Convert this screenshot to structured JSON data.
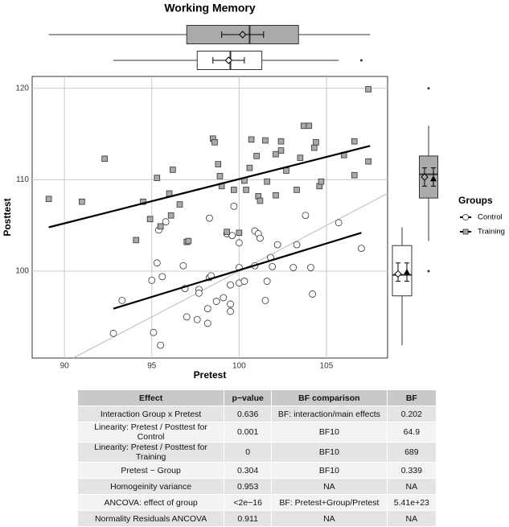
{
  "chart_data": {
    "type": "scatter",
    "title": "Working Memory",
    "xlabel": "Pretest",
    "ylabel": "Posttest",
    "xlim": [
      88.15,
      108.5
    ],
    "ylim": [
      90.5,
      121.3
    ],
    "xticks": [
      90,
      95,
      100,
      105
    ],
    "yticks": [
      100,
      110,
      120
    ],
    "grid": true,
    "legend_title": "Groups",
    "series": [
      {
        "name": "Control",
        "marker": "circle",
        "color": "#ffffff",
        "x": [
          92.8,
          93.3,
          95.1,
          95.5,
          95.3,
          95.0,
          95.6,
          95.4,
          95.8,
          96.9,
          96.8,
          97.0,
          97.6,
          97.7,
          97.7,
          98.2,
          98.2,
          98.3,
          98.3,
          98.4,
          98.7,
          99.1,
          99.5,
          99.5,
          99.3,
          99.5,
          99.6,
          100.0,
          100.0,
          99.7,
          100.3,
          100.0,
          100.9,
          100.9,
          101.1,
          101.2,
          101.5,
          101.6,
          101.8,
          101.9,
          102.2,
          103.1,
          103.3,
          103.8,
          104.1,
          104.2,
          105.7,
          107.0
        ],
        "values": [
          93.2,
          96.8,
          93.3,
          91.9,
          100.9,
          99.0,
          99.4,
          104.5,
          105.4,
          98.1,
          100.6,
          95.0,
          94.7,
          98.0,
          97.6,
          94.3,
          95.9,
          105.8,
          99.3,
          99.5,
          96.7,
          97.1,
          96.4,
          95.6,
          104.1,
          98.5,
          103.9,
          98.7,
          103.1,
          107.1,
          98.9,
          100.4,
          104.4,
          100.6,
          104.1,
          103.6,
          96.8,
          98.9,
          101.5,
          100.5,
          102.9,
          100.4,
          102.9,
          106.1,
          100.4,
          97.5,
          105.3,
          102.5
        ],
        "fit_x": [
          92.8,
          107.0
        ],
        "fit_y": [
          95.9,
          104.2
        ],
        "pretest_box": {
          "whisker_low": 92.8,
          "q1": 97.6,
          "median": 99.5,
          "q3": 101.3,
          "whisker_high": 105.7,
          "mean": 99.4,
          "ci_low": 98.5,
          "ci_high": 100.3,
          "outliers": [
            107.0
          ]
        },
        "posttest_box": {
          "whisker_low": 91.9,
          "q1": 97.3,
          "median": 99.6,
          "q3": 102.8,
          "whisker_high": 104.8,
          "mean": 99.7,
          "mean_adjusted": 99.9,
          "ci_low": 98.9,
          "ci_high": 100.9,
          "outliers": []
        }
      },
      {
        "name": "Training",
        "marker": "square",
        "color": "#aaaaaa",
        "x": [
          89.1,
          91.0,
          92.3,
          94.1,
          94.5,
          94.9,
          95.3,
          95.5,
          96.2,
          96.0,
          96.1,
          97.0,
          97.1,
          96.6,
          98.5,
          98.6,
          98.8,
          98.9,
          99.0,
          99.3,
          99.7,
          100.0,
          100.3,
          100.4,
          100.6,
          100.7,
          101.0,
          101.1,
          101.2,
          101.5,
          101.6,
          102.1,
          102.1,
          102.4,
          102.4,
          102.7,
          103.3,
          103.5,
          103.7,
          104.0,
          104.3,
          104.4,
          104.6,
          104.7,
          106.0,
          106.6,
          106.6,
          107.4,
          107.4
        ],
        "values": [
          107.9,
          107.6,
          112.3,
          103.4,
          107.6,
          105.7,
          110.2,
          104.9,
          111.1,
          108.5,
          106.1,
          103.2,
          103.3,
          107.3,
          114.5,
          114.1,
          111.7,
          110.4,
          109.3,
          104.3,
          108.9,
          104.2,
          109.9,
          108.9,
          111.3,
          114.4,
          112.6,
          108.2,
          107.7,
          114.3,
          109.8,
          108.3,
          112.8,
          113.2,
          114.2,
          111.0,
          108.9,
          112.4,
          115.9,
          115.9,
          113.5,
          114.1,
          109.3,
          109.8,
          112.7,
          114.2,
          110.5,
          119.9,
          112.0
        ],
        "fit_x": [
          89.1,
          107.5
        ],
        "fit_y": [
          104.8,
          113.7
        ],
        "pretest_box": {
          "whisker_low": 89.1,
          "q1": 97.0,
          "median": 100.6,
          "q3": 103.4,
          "whisker_high": 107.5,
          "mean": 100.2,
          "ci_low": 99.0,
          "ci_high": 101.4,
          "outliers": []
        },
        "posttest_box": {
          "whisker_low": 103.3,
          "q1": 108.0,
          "median": 110.6,
          "q3": 112.6,
          "whisker_high": 115.9,
          "mean": 110.3,
          "mean_adjusted": 110.1,
          "ci_low": 109.3,
          "ci_high": 111.3,
          "outliers": [
            120.0,
            100.0
          ]
        }
      }
    ]
  },
  "table": {
    "header": [
      "Effect",
      "p−value",
      "BF comparison",
      "BF"
    ],
    "rows": [
      [
        "Interaction Group x Pretest",
        "0.636",
        "BF: interaction/main effects",
        "0.202"
      ],
      [
        "Linearity: Pretest / Posttest for Control",
        "0.001",
        "BF10",
        "64.9"
      ],
      [
        "Linearity: Pretest / Posttest for Training",
        "0",
        "BF10",
        "689"
      ],
      [
        "Pretest ~ Group",
        "0.304",
        "BF10",
        "0.339"
      ],
      [
        "Homogeinity variance",
        "0.953",
        "NA",
        "NA"
      ],
      [
        "ANCOVA: effect of group",
        "<2e−16",
        "BF: Pretest+Group/Pretest",
        "5.41e+23"
      ],
      [
        "Normality Residuals ANCOVA",
        "0.911",
        "NA",
        "NA"
      ]
    ]
  }
}
